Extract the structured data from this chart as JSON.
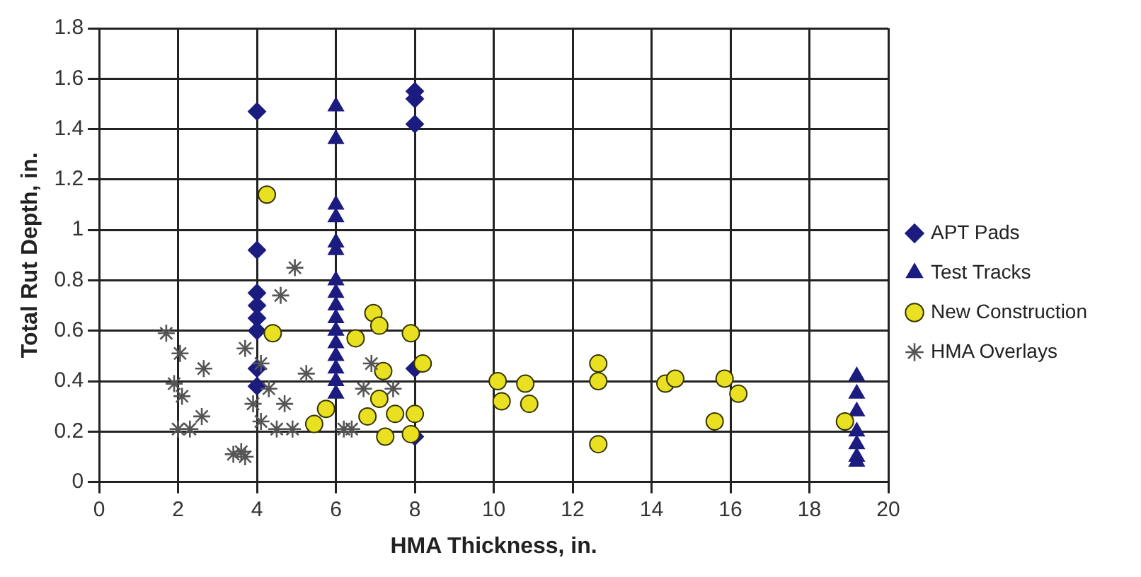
{
  "chart_data": {
    "type": "scatter",
    "xlabel": "HMA Thickness, in.",
    "ylabel": "Total Rut Depth, in.",
    "xlim": [
      0,
      20
    ],
    "xticks": [
      0,
      2,
      4,
      6,
      8,
      10,
      12,
      14,
      16,
      18,
      20
    ],
    "ylim": [
      0,
      1.8
    ],
    "yticks": [
      0,
      0.2,
      0.4,
      0.6,
      0.8,
      1,
      1.2,
      1.4,
      1.6,
      1.8
    ],
    "grid": true,
    "legend": "right",
    "series": [
      {
        "name": "APT Pads",
        "color": "#1c1c80",
        "marker": "diamond",
        "x": [
          4,
          4,
          4,
          4,
          4,
          4,
          4,
          4,
          8,
          8,
          8,
          8,
          8
        ],
        "values": [
          1.47,
          0.92,
          0.75,
          0.7,
          0.65,
          0.6,
          0.45,
          0.38,
          1.55,
          1.52,
          1.42,
          0.45,
          0.18
        ]
      },
      {
        "name": "Test Tracks",
        "color": "#1c1c80",
        "marker": "triangle",
        "x": [
          6,
          6,
          6,
          6,
          6,
          6,
          6,
          6,
          6,
          6,
          6,
          6,
          6,
          6,
          6,
          6,
          19.2,
          19.2,
          19.2,
          19.2,
          19.2,
          19.2,
          19.2
        ],
        "values": [
          1.49,
          1.36,
          1.1,
          1.05,
          0.95,
          0.92,
          0.8,
          0.75,
          0.7,
          0.65,
          0.6,
          0.55,
          0.5,
          0.45,
          0.4,
          0.35,
          0.42,
          0.35,
          0.28,
          0.2,
          0.15,
          0.1,
          0.08
        ]
      },
      {
        "name": "New Construction",
        "color": "#e8e020",
        "marker": "circle",
        "x": [
          4.25,
          4.4,
          5.45,
          5.75,
          6.5,
          6.95,
          7.1,
          7.1,
          7.2,
          7.25,
          6.8,
          7.5,
          7.9,
          8,
          7.9,
          8.2,
          10.1,
          10.8,
          10.2,
          10.9,
          12.65,
          12.65,
          12.65,
          14.35,
          14.6,
          15.85,
          16.2,
          15.6,
          18.9
        ],
        "values": [
          1.14,
          0.59,
          0.23,
          0.29,
          0.57,
          0.67,
          0.62,
          0.33,
          0.44,
          0.18,
          0.26,
          0.27,
          0.59,
          0.27,
          0.19,
          0.47,
          0.4,
          0.39,
          0.32,
          0.31,
          0.47,
          0.4,
          0.15,
          0.39,
          0.41,
          0.41,
          0.35,
          0.24,
          0.24
        ]
      },
      {
        "name": "HMA Overlays",
        "color": "#555555",
        "marker": "cross",
        "x": [
          1.7,
          2.05,
          2.65,
          1.9,
          2.1,
          2.6,
          2,
          2.3,
          3.6,
          3.4,
          3.7,
          3.7,
          4.6,
          4.96,
          4.1,
          4.3,
          4.1,
          4.7,
          4.9,
          5.25,
          6.4,
          3.9,
          4.5,
          6.9,
          6.7,
          6.2,
          7.45
        ],
        "values": [
          0.59,
          0.51,
          0.45,
          0.39,
          0.34,
          0.26,
          0.21,
          0.21,
          0.12,
          0.11,
          0.1,
          0.53,
          0.74,
          0.85,
          0.47,
          0.37,
          0.24,
          0.31,
          0.21,
          0.43,
          0.21,
          0.31,
          0.21,
          0.47,
          0.37,
          0.21,
          0.37
        ]
      }
    ]
  }
}
